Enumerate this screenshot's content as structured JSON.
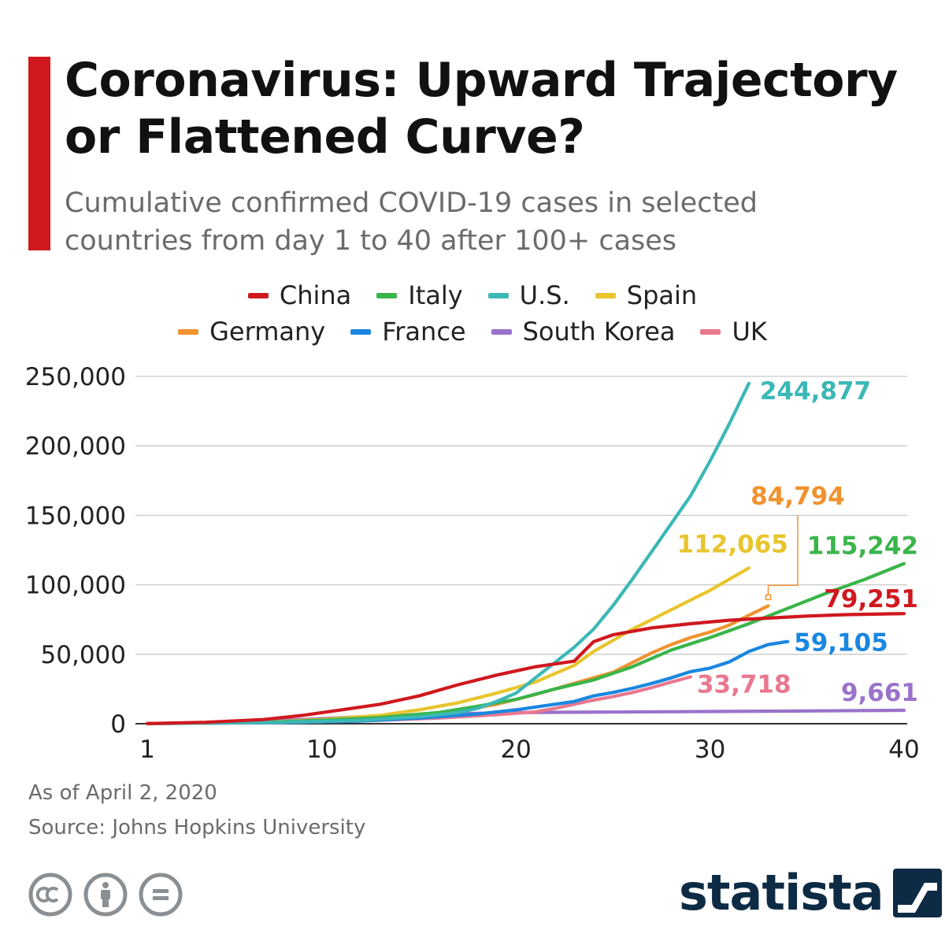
{
  "header": {
    "title": "Coronavirus: Upward Trajectory or Flattened Curve?",
    "subtitle": "Cumulative confirmed COVID-19 cases in selected countries from day 1 to 40 after 100+ cases"
  },
  "colors": {
    "accent": "#d0181f",
    "China": "#d0181f",
    "Italy": "#3ab54a",
    "U.S.": "#3bb8b6",
    "Spain": "#e8c52d",
    "Germany": "#f0922e",
    "France": "#1a87e0",
    "South Korea": "#9b72cb",
    "UK": "#e9788e",
    "brand": "#0e2b45"
  },
  "chart_data": {
    "type": "line",
    "title": "Coronavirus: Upward Trajectory or Flattened Curve?",
    "xlabel": "",
    "ylabel": "",
    "xlim": [
      1,
      40
    ],
    "ylim": [
      0,
      250000
    ],
    "x_ticks": [
      1,
      10,
      20,
      30,
      40
    ],
    "y_ticks": [
      0,
      50000,
      100000,
      150000,
      200000,
      250000
    ],
    "y_tick_labels": [
      "0",
      "50,000",
      "100,000",
      "150,000",
      "200,000",
      "250,000"
    ],
    "grid": true,
    "legend": "top-center",
    "series": [
      {
        "name": "China",
        "end_label": "79,251",
        "x": [
          1,
          4,
          7,
          9,
          11,
          13,
          15,
          17,
          19,
          21,
          23,
          24,
          25,
          27,
          29,
          31,
          33,
          35,
          37,
          40
        ],
        "y": [
          100,
          1000,
          3000,
          6000,
          10000,
          14000,
          20000,
          28000,
          35000,
          41000,
          45000,
          59000,
          64000,
          69000,
          72000,
          74500,
          76000,
          77500,
          78500,
          79251
        ]
      },
      {
        "name": "Italy",
        "end_label": "115,242",
        "x": [
          1,
          7,
          10,
          13,
          16,
          18,
          20,
          22,
          24,
          26,
          28,
          30,
          32,
          34,
          36,
          38,
          40
        ],
        "y": [
          100,
          1000,
          2500,
          4500,
          8000,
          12500,
          17500,
          25000,
          31500,
          41000,
          53000,
          62000,
          72000,
          83000,
          94000,
          104000,
          115242
        ]
      },
      {
        "name": "U.S.",
        "end_label": "244,877",
        "x": [
          1,
          8,
          12,
          15,
          17,
          18,
          19,
          20,
          21,
          22,
          23,
          24,
          25,
          26,
          27,
          28,
          29,
          30,
          31,
          32
        ],
        "y": [
          100,
          1000,
          2500,
          5000,
          8000,
          11000,
          16000,
          22000,
          33000,
          44000,
          55000,
          68000,
          85000,
          104000,
          124000,
          144000,
          164000,
          189000,
          216000,
          244877
        ]
      },
      {
        "name": "Spain",
        "end_label": "112,065",
        "x": [
          1,
          7,
          10,
          13,
          15,
          17,
          19,
          21,
          23,
          24,
          25,
          26,
          27,
          28,
          29,
          30,
          31,
          32
        ],
        "y": [
          100,
          1000,
          3000,
          6000,
          10000,
          15000,
          22000,
          30000,
          42000,
          52000,
          60000,
          68000,
          75000,
          82000,
          89000,
          96000,
          104000,
          112065
        ]
      },
      {
        "name": "Germany",
        "end_label": "84,794",
        "x": [
          1,
          8,
          11,
          14,
          17,
          19,
          21,
          23,
          25,
          26,
          27,
          28,
          29,
          30,
          31,
          32,
          33
        ],
        "y": [
          100,
          1000,
          2500,
          5000,
          9000,
          14000,
          21000,
          29000,
          37000,
          44000,
          51000,
          57000,
          62000,
          66000,
          71000,
          78000,
          84794
        ]
      },
      {
        "name": "France",
        "end_label": "59,105",
        "x": [
          1,
          8,
          12,
          15,
          18,
          20,
          22,
          23,
          24,
          25,
          26,
          27,
          28,
          29,
          30,
          31,
          32,
          33,
          34
        ],
        "y": [
          100,
          800,
          2000,
          4000,
          7000,
          10000,
          14000,
          16000,
          20000,
          22500,
          25500,
          29000,
          33000,
          37500,
          40000,
          44500,
          52000,
          57000,
          59105
        ]
      },
      {
        "name": "South Korea",
        "end_label": "9,661",
        "x": [
          1,
          5,
          9,
          12,
          15,
          18,
          20,
          22,
          25,
          30,
          35,
          40
        ],
        "y": [
          100,
          1000,
          3000,
          5000,
          6500,
          7500,
          8000,
          8200,
          8400,
          8800,
          9200,
          9661
        ]
      },
      {
        "name": "UK",
        "end_label": "33,718",
        "x": [
          1,
          8,
          12,
          16,
          19,
          21,
          22,
          23,
          24,
          25,
          26,
          27,
          28,
          29
        ],
        "y": [
          100,
          800,
          2000,
          4000,
          6500,
          8500,
          11000,
          14000,
          17000,
          19500,
          22500,
          26000,
          30000,
          33718
        ]
      }
    ]
  },
  "footer": {
    "date_note": "As of April 2, 2020",
    "source_note": "Source: Johns Hopkins University"
  },
  "brand": {
    "name": "statista"
  },
  "icons": [
    "creative-commons-icon",
    "attribution-icon",
    "no-derivatives-icon",
    "statista-logo-icon"
  ]
}
